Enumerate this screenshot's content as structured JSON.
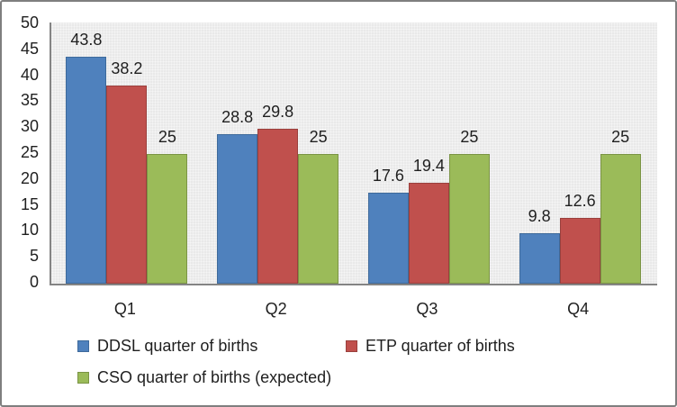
{
  "chart_data": {
    "type": "bar",
    "title": "",
    "xlabel": "",
    "ylabel": "",
    "categories": [
      "Q1",
      "Q2",
      "Q3",
      "Q4"
    ],
    "series": [
      {
        "name": "DDSL quarter of births",
        "color": "#4F81BD",
        "border_color": "#3E6A9B",
        "values": [
          43.8,
          28.8,
          17.6,
          9.8
        ]
      },
      {
        "name": "ETP quarter of births",
        "color": "#C0504D",
        "border_color": "#9A403D",
        "values": [
          38.2,
          29.8,
          19.4,
          12.6
        ]
      },
      {
        "name": "CSO quarter of births (expected)",
        "color": "#9BBB59",
        "border_color": "#7B9445",
        "values": [
          25,
          25,
          25,
          25
        ]
      }
    ],
    "data_labels": [
      "43.8",
      "38.2",
      "25",
      "28.8",
      "29.8",
      "25",
      "17.6",
      "19.4",
      "25",
      "9.8",
      "12.6",
      "25"
    ],
    "ylim": [
      0,
      50
    ],
    "yticks": [
      0,
      5,
      10,
      15,
      20,
      25,
      30,
      35,
      40,
      45,
      50
    ],
    "grid": false,
    "legend_position": "bottom-left, two rows"
  },
  "colors": {
    "plot_background": "#E9E9E9",
    "axis_line": "#848484",
    "frame_border": "#7F7F7F",
    "text": "#1F1F1F"
  }
}
